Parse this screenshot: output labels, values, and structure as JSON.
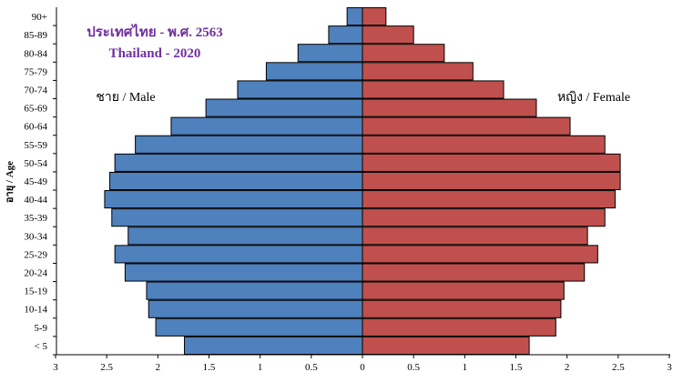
{
  "chart_data": {
    "type": "bar",
    "title": "ประเทศไทย - พ.ศ. 2563",
    "subtitle": "Thailand - 2020",
    "ylabel": "อายุ / Age",
    "xlim": [
      -3,
      3
    ],
    "x_tick_labels": [
      "3",
      "2.5",
      "2",
      "1.5",
      "1",
      "0.5",
      "0",
      "0.5",
      "1",
      "1.5",
      "2",
      "2.5",
      "3"
    ],
    "categories": [
      "< 5",
      "5-9",
      "10-14",
      "15-19",
      "20-24",
      "25-29",
      "30-34",
      "35-39",
      "40-44",
      "45-49",
      "50-54",
      "55-59",
      "60-64",
      "65-69",
      "70-74",
      "75-79",
      "80-84",
      "85-89",
      "90+"
    ],
    "series": [
      {
        "name": "ชาย / Male",
        "color": "#4f81bd",
        "values": [
          1.74,
          2.02,
          2.09,
          2.11,
          2.32,
          2.42,
          2.29,
          2.45,
          2.52,
          2.47,
          2.42,
          2.22,
          1.87,
          1.53,
          1.22,
          0.94,
          0.63,
          0.33,
          0.15
        ]
      },
      {
        "name": "หญิง / Female",
        "color": "#c0504d",
        "values": [
          1.63,
          1.89,
          1.94,
          1.97,
          2.17,
          2.3,
          2.2,
          2.37,
          2.47,
          2.52,
          2.52,
          2.37,
          2.03,
          1.7,
          1.38,
          1.08,
          0.8,
          0.5,
          0.23
        ]
      }
    ],
    "grid": false,
    "legend": "inline labels"
  }
}
